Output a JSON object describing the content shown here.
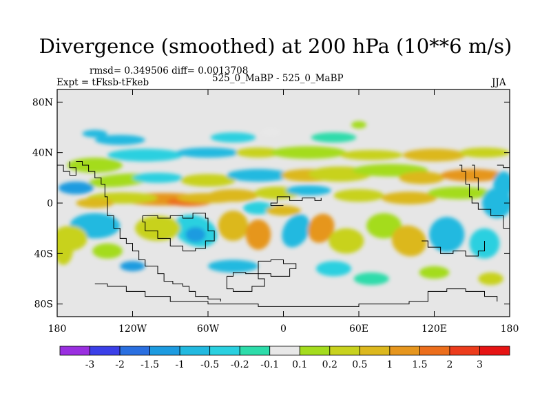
{
  "chart_data": {
    "type": "contour_map",
    "title": "Divergence (smoothed) at 200 hPa (10**6 m/s)",
    "stats_text": "rmsd= 0.349506 diff= 0.0013708",
    "left_label": "Expt = tFksb-tFkeb",
    "center_label": "525_0_MaBP - 525_0_MaBP",
    "right_label": "JJA",
    "x_axis": {
      "range": [
        -180,
        180
      ],
      "ticks": [
        -180,
        -120,
        -60,
        0,
        60,
        120,
        180
      ],
      "tick_labels": [
        "180",
        "120W",
        "60W",
        "0",
        "60E",
        "120E",
        "180"
      ]
    },
    "y_axis": {
      "range": [
        -90,
        90
      ],
      "ticks": [
        80,
        40,
        0,
        -40,
        -80
      ],
      "tick_labels": [
        "80N",
        "40N",
        "0",
        "40S",
        "80S"
      ]
    },
    "colorbar": {
      "labels": [
        "-3",
        "-2",
        "-1.5",
        "-1",
        "-0.5",
        "-0.2",
        "-0.1",
        "0.1",
        "0.2",
        "0.5",
        "1",
        "1.5",
        "2",
        "3"
      ],
      "colors": [
        "#9a2fe0",
        "#3b3fe8",
        "#2a6fe0",
        "#1d9be0",
        "#22b9e0",
        "#2ad0e0",
        "#2ddcaa",
        "#e8e8e8",
        "#a4dc1e",
        "#c8d21e",
        "#dcb81e",
        "#e6961e",
        "#ec6e1c",
        "#ec3c1c",
        "#e61414"
      ]
    },
    "background_color": "#e6e6e6"
  }
}
